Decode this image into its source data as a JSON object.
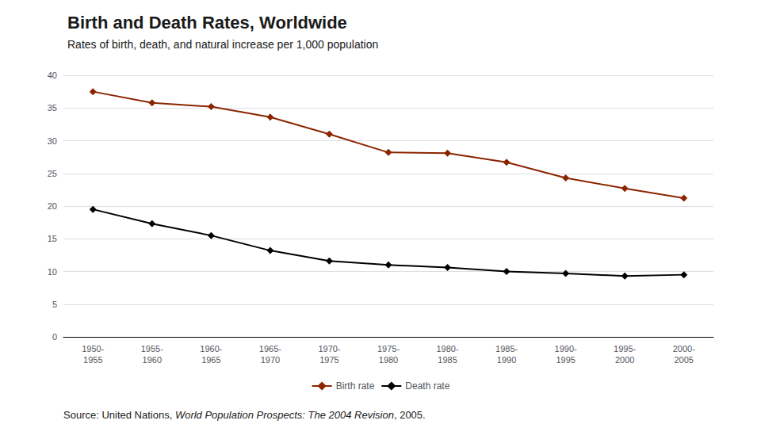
{
  "chart_data": {
    "type": "line",
    "title": "Birth and Death Rates, Worldwide",
    "subtitle": "Rates of birth, death, and natural increase per 1,000 population",
    "categories": [
      "1950-\n1955",
      "1955-\n1960",
      "1960-\n1965",
      "1965-\n1970",
      "1970-\n1975",
      "1975-\n1980",
      "1980-\n1985",
      "1985-\n1990",
      "1990-\n1995",
      "1995-\n2000",
      "2000-\n2005"
    ],
    "series": [
      {
        "name": "Birth rate",
        "color": "#8B2500",
        "values": [
          37.5,
          35.8,
          35.2,
          33.6,
          31.0,
          28.2,
          28.1,
          26.7,
          24.3,
          22.7,
          21.2
        ]
      },
      {
        "name": "Death rate",
        "color": "#000000",
        "values": [
          19.5,
          17.3,
          15.5,
          13.2,
          11.6,
          11.0,
          10.6,
          10.0,
          9.7,
          9.3,
          9.5
        ]
      }
    ],
    "ylim": [
      0,
      40
    ],
    "yticks": [
      0,
      5,
      10,
      15,
      20,
      25,
      30,
      35,
      40
    ],
    "grid": true,
    "legend": "bottom",
    "marker": "diamond",
    "annotations": [
      "Source: United Nations, ",
      "World Population Prospects: The 2004 Revision",
      ", 2005."
    ]
  }
}
